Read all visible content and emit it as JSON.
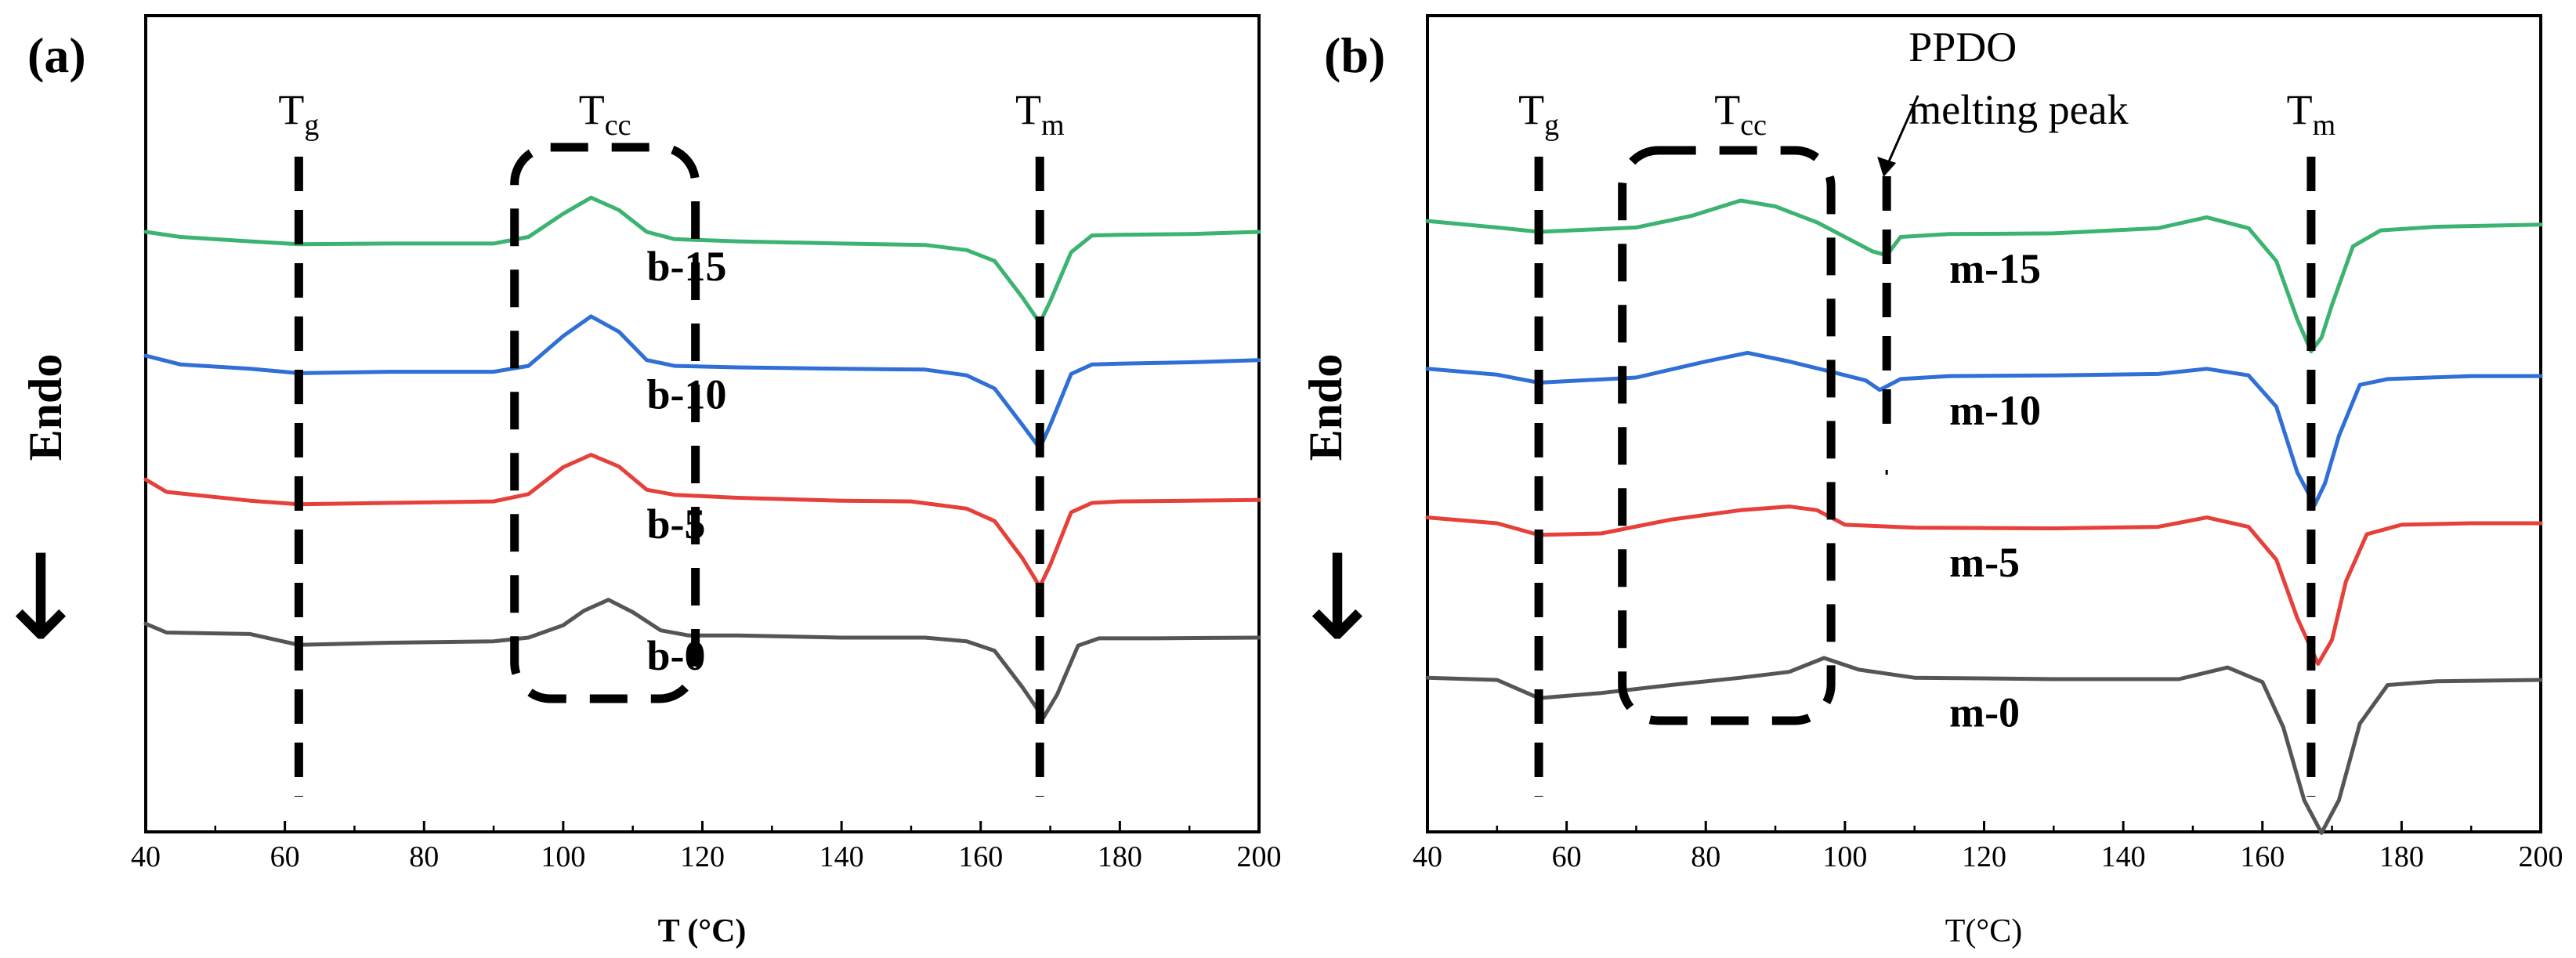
{
  "figure": {
    "y_axis_label": "Endo",
    "arrow_symbol": "↓"
  },
  "chart_data": [
    {
      "type": "line",
      "panel_label": "(a)",
      "xlabel": "T (°C)",
      "ylabel": "Endo",
      "xlim": [
        40,
        200
      ],
      "x_ticks": [
        40,
        60,
        80,
        100,
        120,
        140,
        160,
        180,
        200
      ],
      "x_tick_labels": [
        "40",
        "60",
        "80",
        "100",
        "120",
        "140",
        "160",
        "180",
        "200"
      ],
      "y_ticks_shown": false,
      "ylim": [
        0,
        100
      ],
      "annotations": [
        {
          "name": "tg",
          "main": "T",
          "sub": "g",
          "x": 62
        },
        {
          "name": "tcc",
          "main": "T",
          "sub": "cc",
          "x": 106
        },
        {
          "name": "tm",
          "main": "T",
          "sub": "m",
          "x": 168.5
        }
      ],
      "tcc_box_x": [
        93,
        119
      ],
      "series": [
        {
          "name": "b-15",
          "color": "#3cb371",
          "label_x": 112,
          "points": [
            [
              40,
              80
            ],
            [
              45,
              79.3
            ],
            [
              55,
              78.7
            ],
            [
              62,
              78.3
            ],
            [
              75,
              78.4
            ],
            [
              90,
              78.4
            ],
            [
              95,
              79.3
            ],
            [
              100,
              82.5
            ],
            [
              104,
              84.7
            ],
            [
              108,
              83
            ],
            [
              112,
              80
            ],
            [
              116,
              79
            ],
            [
              125,
              78.7
            ],
            [
              140,
              78.4
            ],
            [
              152,
              78.2
            ],
            [
              158,
              77.5
            ],
            [
              162,
              76
            ],
            [
              166,
              71
            ],
            [
              168.5,
              67.5
            ],
            [
              170,
              70.5
            ],
            [
              173,
              77.2
            ],
            [
              176,
              79.5
            ],
            [
              180,
              79.6
            ],
            [
              190,
              79.7
            ],
            [
              200,
              80
            ]
          ]
        },
        {
          "name": "b-10",
          "color": "#2f6fd6",
          "label_x": 112,
          "points": [
            [
              40,
              63
            ],
            [
              45,
              61.8
            ],
            [
              55,
              61.2
            ],
            [
              62,
              60.6
            ],
            [
              75,
              60.8
            ],
            [
              90,
              60.8
            ],
            [
              95,
              61.6
            ],
            [
              100,
              65.7
            ],
            [
              104,
              68.4
            ],
            [
              108,
              66.3
            ],
            [
              112,
              62.4
            ],
            [
              116,
              61.6
            ],
            [
              125,
              61.4
            ],
            [
              140,
              61.2
            ],
            [
              152,
              61.1
            ],
            [
              158,
              60.3
            ],
            [
              162,
              58.5
            ],
            [
              166,
              53.5
            ],
            [
              168.5,
              50.3
            ],
            [
              170,
              53.5
            ],
            [
              173,
              60.5
            ],
            [
              176,
              61.8
            ],
            [
              180,
              61.9
            ],
            [
              190,
              62.1
            ],
            [
              200,
              62.4
            ]
          ]
        },
        {
          "name": "b-5",
          "color": "#e5403a",
          "label_x": 112,
          "points": [
            [
              40,
              46
            ],
            [
              43,
              44.3
            ],
            [
              55,
              43.1
            ],
            [
              62,
              42.6
            ],
            [
              75,
              42.8
            ],
            [
              90,
              43
            ],
            [
              95,
              44
            ],
            [
              100,
              47.7
            ],
            [
              104,
              49.4
            ],
            [
              108,
              47.8
            ],
            [
              112,
              44.6
            ],
            [
              116,
              43.9
            ],
            [
              125,
              43.5
            ],
            [
              140,
              43.1
            ],
            [
              150,
              43
            ],
            [
              158,
              42
            ],
            [
              162,
              40.3
            ],
            [
              166,
              35.2
            ],
            [
              168.5,
              31.3
            ],
            [
              170,
              34.3
            ],
            [
              173,
              41.5
            ],
            [
              176,
              42.8
            ],
            [
              180,
              43
            ],
            [
              190,
              43.1
            ],
            [
              200,
              43.2
            ]
          ]
        },
        {
          "name": "b-0",
          "color": "#555555",
          "label_x": 112,
          "points": [
            [
              40,
              26.2
            ],
            [
              43,
              25
            ],
            [
              55,
              24.8
            ],
            [
              62,
              23.3
            ],
            [
              75,
              23.6
            ],
            [
              90,
              23.8
            ],
            [
              95,
              24.3
            ],
            [
              100,
              26
            ],
            [
              103,
              28
            ],
            [
              106.5,
              29.5
            ],
            [
              110,
              27.8
            ],
            [
              114,
              25.3
            ],
            [
              118,
              24.6
            ],
            [
              125,
              24.6
            ],
            [
              140,
              24.3
            ],
            [
              152,
              24.3
            ],
            [
              158,
              23.8
            ],
            [
              162,
              22.5
            ],
            [
              166,
              17.5
            ],
            [
              169,
              13.3
            ],
            [
              171,
              16.5
            ],
            [
              174,
              23.2
            ],
            [
              177,
              24.2
            ],
            [
              185,
              24.2
            ],
            [
              200,
              24.3
            ]
          ]
        }
      ]
    },
    {
      "type": "line",
      "panel_label": "(b)",
      "xlabel": "T(°C)",
      "ylabel": "Endo",
      "xlim": [
        40,
        200
      ],
      "x_ticks": [
        40,
        60,
        80,
        100,
        120,
        140,
        160,
        180,
        200
      ],
      "x_tick_labels": [
        "40",
        "60",
        "80",
        "100",
        "120",
        "140",
        "160",
        "180",
        "200"
      ],
      "y_ticks_shown": false,
      "ylim": [
        0,
        100
      ],
      "annotations": [
        {
          "name": "tg",
          "main": "T",
          "sub": "g",
          "x": 56
        },
        {
          "name": "tcc",
          "main": "T",
          "sub": "cc",
          "x": 85
        },
        {
          "name": "tm",
          "main": "T",
          "sub": "m",
          "x": 167
        }
      ],
      "ppdo_label_line1": "PPDO",
      "ppdo_label_line2": "melting peak",
      "ppdo_x": 106,
      "tcc_box_x": [
        68,
        98
      ],
      "series": [
        {
          "name": "m-15",
          "color": "#3cb371",
          "label_x": 115,
          "points": [
            [
              40,
              81.5
            ],
            [
              50,
              80.6
            ],
            [
              56,
              80
            ],
            [
              70,
              80.6
            ],
            [
              78,
              82.2
            ],
            [
              85,
              84.3
            ],
            [
              90,
              83.5
            ],
            [
              96,
              81.3
            ],
            [
              100,
              79.3
            ],
            [
              104,
              77.3
            ],
            [
              106,
              76.8
            ],
            [
              108,
              79.3
            ],
            [
              115,
              79.7
            ],
            [
              130,
              79.8
            ],
            [
              145,
              80.5
            ],
            [
              152,
              82
            ],
            [
              158,
              80.5
            ],
            [
              162,
              76
            ],
            [
              165,
              68
            ],
            [
              167,
              63.6
            ],
            [
              168.5,
              65.5
            ],
            [
              170,
              70
            ],
            [
              173,
              78
            ],
            [
              177,
              80.2
            ],
            [
              185,
              80.7
            ],
            [
              200,
              81
            ]
          ]
        },
        {
          "name": "m-10",
          "color": "#2f6fd6",
          "label_x": 115,
          "points": [
            [
              40,
              61.2
            ],
            [
              50,
              60.4
            ],
            [
              56,
              59.3
            ],
            [
              70,
              60
            ],
            [
              80,
              62.2
            ],
            [
              86,
              63.4
            ],
            [
              92,
              62.2
            ],
            [
              98,
              60.8
            ],
            [
              103,
              59.6
            ],
            [
              105,
              58.3
            ],
            [
              108,
              59.8
            ],
            [
              115,
              60.2
            ],
            [
              130,
              60.3
            ],
            [
              145,
              60.5
            ],
            [
              152,
              61.2
            ],
            [
              158,
              60.3
            ],
            [
              162,
              56
            ],
            [
              165,
              47
            ],
            [
              167.5,
              42.5
            ],
            [
              169,
              45.5
            ],
            [
              171,
              52
            ],
            [
              174,
              59
            ],
            [
              178,
              59.8
            ],
            [
              190,
              60.2
            ],
            [
              200,
              60.2
            ]
          ]
        },
        {
          "name": "m-5",
          "color": "#e5403a",
          "label_x": 115,
          "points": [
            [
              40,
              40.8
            ],
            [
              50,
              40
            ],
            [
              56,
              38.4
            ],
            [
              65,
              38.6
            ],
            [
              75,
              40.5
            ],
            [
              85,
              41.8
            ],
            [
              92,
              42.3
            ],
            [
              96,
              41.8
            ],
            [
              100,
              39.8
            ],
            [
              110,
              39.4
            ],
            [
              130,
              39.3
            ],
            [
              145,
              39.5
            ],
            [
              152,
              40.8
            ],
            [
              158,
              39.5
            ],
            [
              162,
              35
            ],
            [
              165,
              27
            ],
            [
              168,
              20.7
            ],
            [
              170,
              24
            ],
            [
              172,
              32
            ],
            [
              175,
              38.5
            ],
            [
              180,
              39.8
            ],
            [
              190,
              40
            ],
            [
              200,
              40
            ]
          ]
        },
        {
          "name": "m-0",
          "color": "#555555",
          "label_x": 115,
          "points": [
            [
              40,
              18.8
            ],
            [
              50,
              18.5
            ],
            [
              56,
              16
            ],
            [
              65,
              16.7
            ],
            [
              75,
              17.8
            ],
            [
              85,
              18.8
            ],
            [
              92,
              19.6
            ],
            [
              97,
              21.5
            ],
            [
              102,
              19.9
            ],
            [
              110,
              18.8
            ],
            [
              130,
              18.6
            ],
            [
              148,
              18.6
            ],
            [
              155,
              20.2
            ],
            [
              160,
              18.2
            ],
            [
              163,
              12
            ],
            [
              166,
              2
            ],
            [
              168.5,
              -2.5
            ],
            [
              171,
              2
            ],
            [
              174,
              12.5
            ],
            [
              178,
              17.8
            ],
            [
              185,
              18.3
            ],
            [
              200,
              18.5
            ]
          ]
        }
      ]
    }
  ]
}
